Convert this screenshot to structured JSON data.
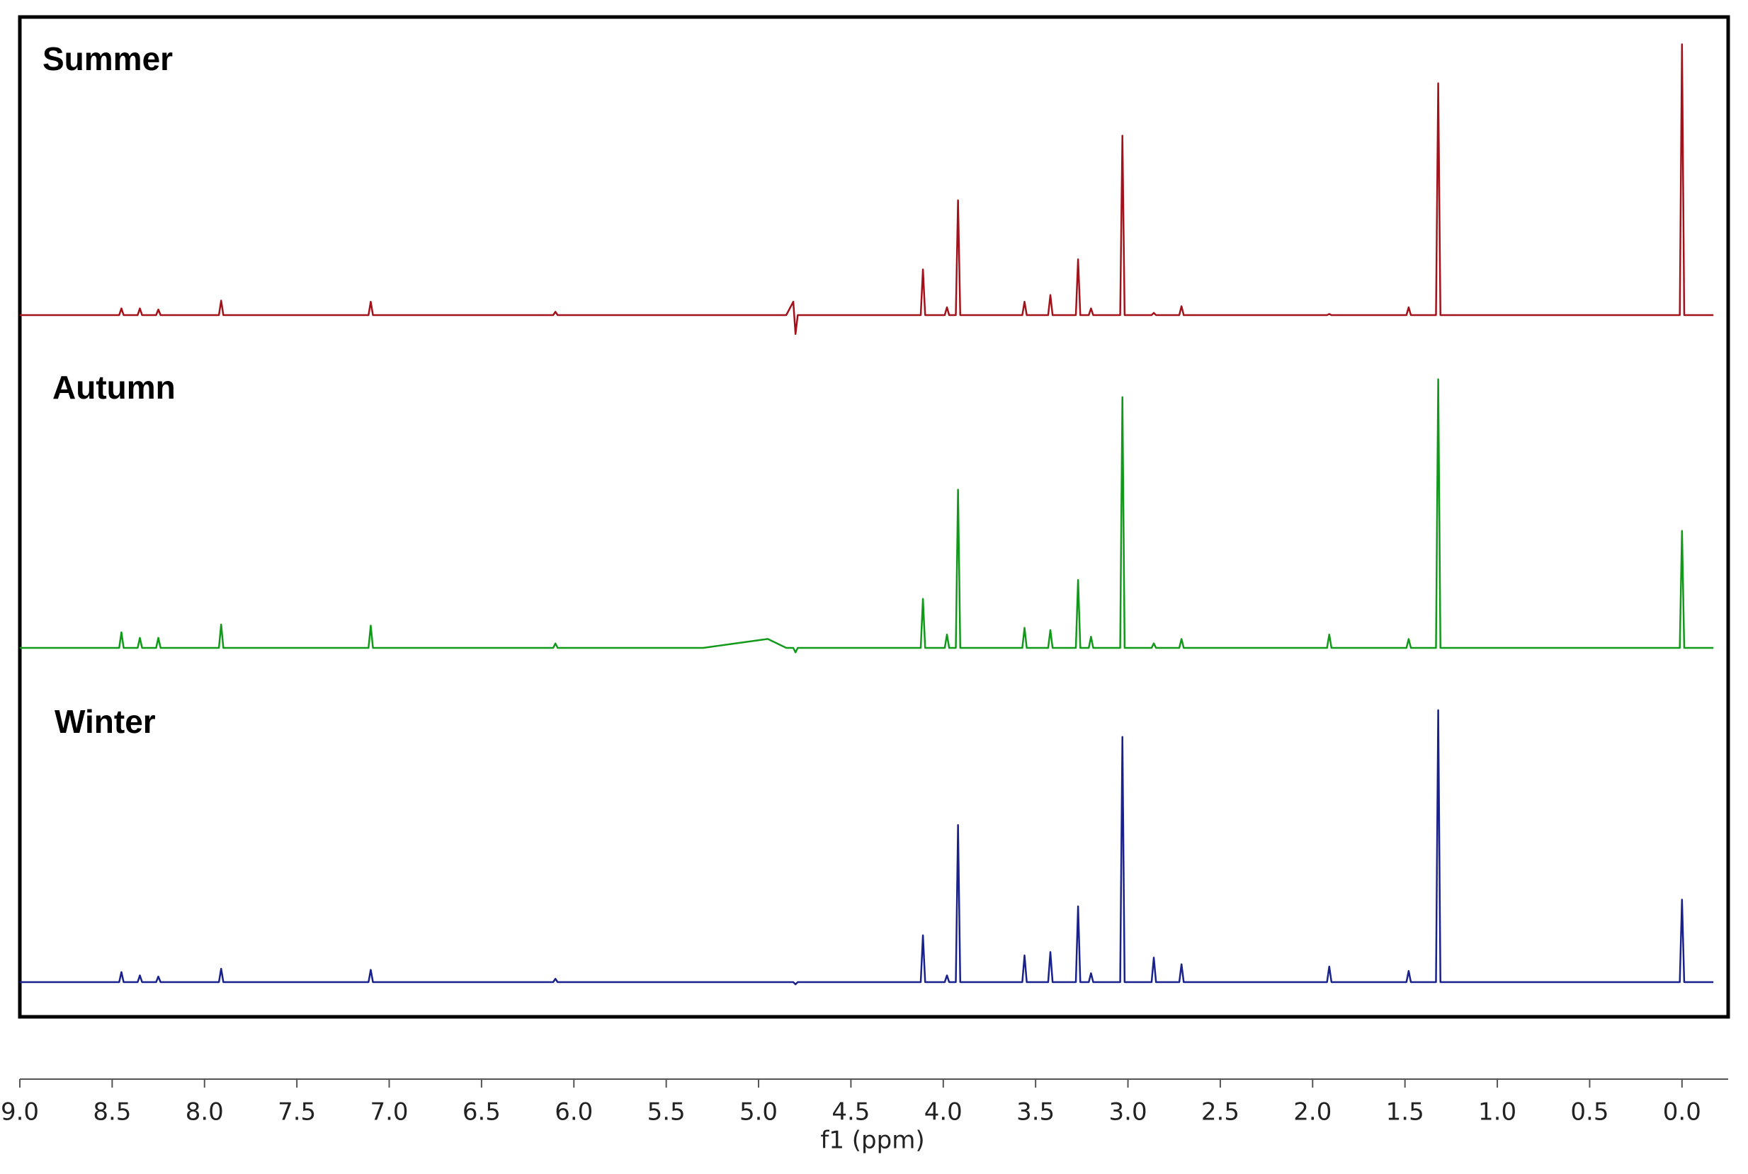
{
  "chart_data": {
    "type": "line",
    "xlabel": "f1 (ppm)",
    "xlim": [
      9.0,
      -0.25
    ],
    "xticks": [
      {
        "value": 9,
        "label": "9.0"
      },
      8.5,
      {
        "value": 8,
        "label": "8.0"
      },
      7.5,
      {
        "value": 7,
        "label": "7.0"
      },
      6.5,
      {
        "value": 6,
        "label": "6.0"
      },
      5.5,
      {
        "value": 5,
        "label": "5.0"
      },
      4.5,
      {
        "value": 4,
        "label": "4.0"
      },
      3.5,
      {
        "value": 3,
        "label": "3.0"
      },
      2.5,
      {
        "value": 2,
        "label": "2.0"
      },
      1.5,
      {
        "value": 1,
        "label": "1.0"
      },
      0.5,
      {
        "value": 0,
        "label": "0.0"
      }
    ],
    "x": [
      9.0,
      8.462,
      8.45,
      8.438,
      8.362,
      8.35,
      8.338,
      8.262,
      8.25,
      8.238,
      7.922,
      7.91,
      7.898,
      7.112,
      7.1,
      7.088,
      6.112,
      6.1,
      6.088,
      5.3,
      4.95,
      4.85,
      4.812,
      4.8,
      4.788,
      4.122,
      4.11,
      4.098,
      3.992,
      3.98,
      3.968,
      3.932,
      3.92,
      3.908,
      3.572,
      3.56,
      3.548,
      3.432,
      3.42,
      3.408,
      3.282,
      3.27,
      3.258,
      3.212,
      3.2,
      3.188,
      3.042,
      3.03,
      3.018,
      2.872,
      2.86,
      2.848,
      2.722,
      2.71,
      2.698,
      1.922,
      1.91,
      1.898,
      1.492,
      1.48,
      1.468,
      1.332,
      1.32,
      1.308,
      0.012,
      0.0,
      -0.012,
      -0.17
    ],
    "series": [
      {
        "name": "Summer",
        "color": "#a3121a",
        "values": [
          0,
          0,
          6,
          0,
          0,
          6,
          0,
          0,
          5,
          0,
          0,
          13,
          0,
          0,
          12,
          0,
          0,
          3,
          0,
          0,
          0,
          0,
          12,
          -17,
          0,
          0,
          41,
          0,
          0,
          7,
          0,
          0,
          103,
          0,
          0,
          12,
          0,
          0,
          18,
          0,
          0,
          50,
          0,
          0,
          6,
          0,
          0,
          161,
          0,
          0,
          2,
          0,
          0,
          8,
          0,
          0,
          1,
          0,
          0,
          7,
          0,
          0,
          208,
          0,
          0,
          243,
          0,
          0
        ]
      },
      {
        "name": "Autumn",
        "color": "#119a19",
        "values": [
          0,
          0,
          14,
          0,
          0,
          9,
          0,
          0,
          9,
          0,
          0,
          21,
          0,
          0,
          20,
          0,
          0,
          4,
          0,
          0,
          8,
          0,
          0,
          -4,
          0,
          0,
          44,
          0,
          0,
          12,
          0,
          0,
          142,
          0,
          0,
          18,
          0,
          0,
          16,
          0,
          0,
          61,
          0,
          0,
          10,
          0,
          0,
          225,
          0,
          0,
          4,
          0,
          0,
          8,
          0,
          0,
          12,
          0,
          0,
          8,
          0,
          0,
          241,
          0,
          0,
          105,
          0,
          0
        ]
      },
      {
        "name": "Winter",
        "color": "#18218c",
        "values": [
          0,
          0,
          9,
          0,
          0,
          6,
          0,
          0,
          5,
          0,
          0,
          12,
          0,
          0,
          11,
          0,
          0,
          3,
          0,
          0,
          0,
          0,
          0,
          -2,
          0,
          0,
          42,
          0,
          0,
          6,
          0,
          0,
          141,
          0,
          0,
          24,
          0,
          0,
          27,
          0,
          0,
          68,
          0,
          0,
          8,
          0,
          0,
          220,
          0,
          0,
          22,
          0,
          0,
          16,
          0,
          0,
          14,
          0,
          0,
          10,
          0,
          0,
          244,
          0,
          0,
          74,
          0,
          0
        ]
      }
    ]
  }
}
